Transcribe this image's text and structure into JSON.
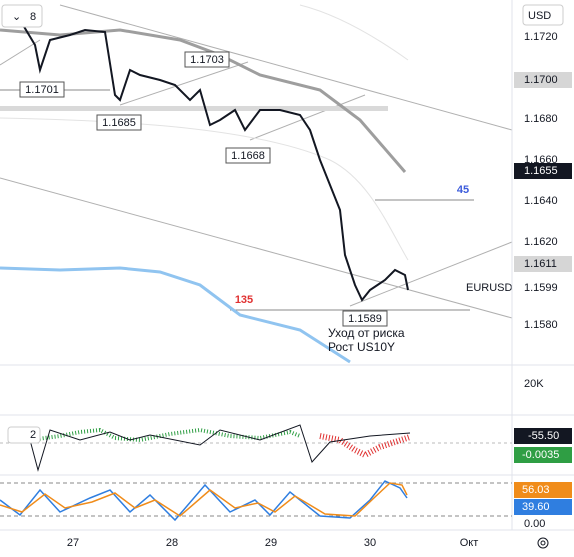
{
  "toolbar": {
    "interval": "8",
    "currency": "USD"
  },
  "price_axis": [
    "1.1720",
    "1.1700",
    "1.1680",
    "1.1660",
    "1.1655",
    "1.1640",
    "1.1620",
    "1.1611",
    "1.1599",
    "1.1580"
  ],
  "annotations": {
    "high_left": "1.1701",
    "high_mid": "1.1703",
    "low_left": "1.1685",
    "low_mid": "1.1668",
    "low_right": "1.1589",
    "count_blue": "45",
    "count_red": "135",
    "symbol": "EURUSD",
    "note_line1": "Уход от риска",
    "note_line2": "Рост US10Y"
  },
  "volume": {
    "scale": "20K"
  },
  "macd": {
    "period": "2",
    "value1": "-55.50",
    "value2": "-0.0035"
  },
  "stochastic": {
    "k": "56.03",
    "d": "39.60",
    "zero": "0.00"
  },
  "time_axis": [
    "27",
    "28",
    "29",
    "30",
    "Окт"
  ]
}
